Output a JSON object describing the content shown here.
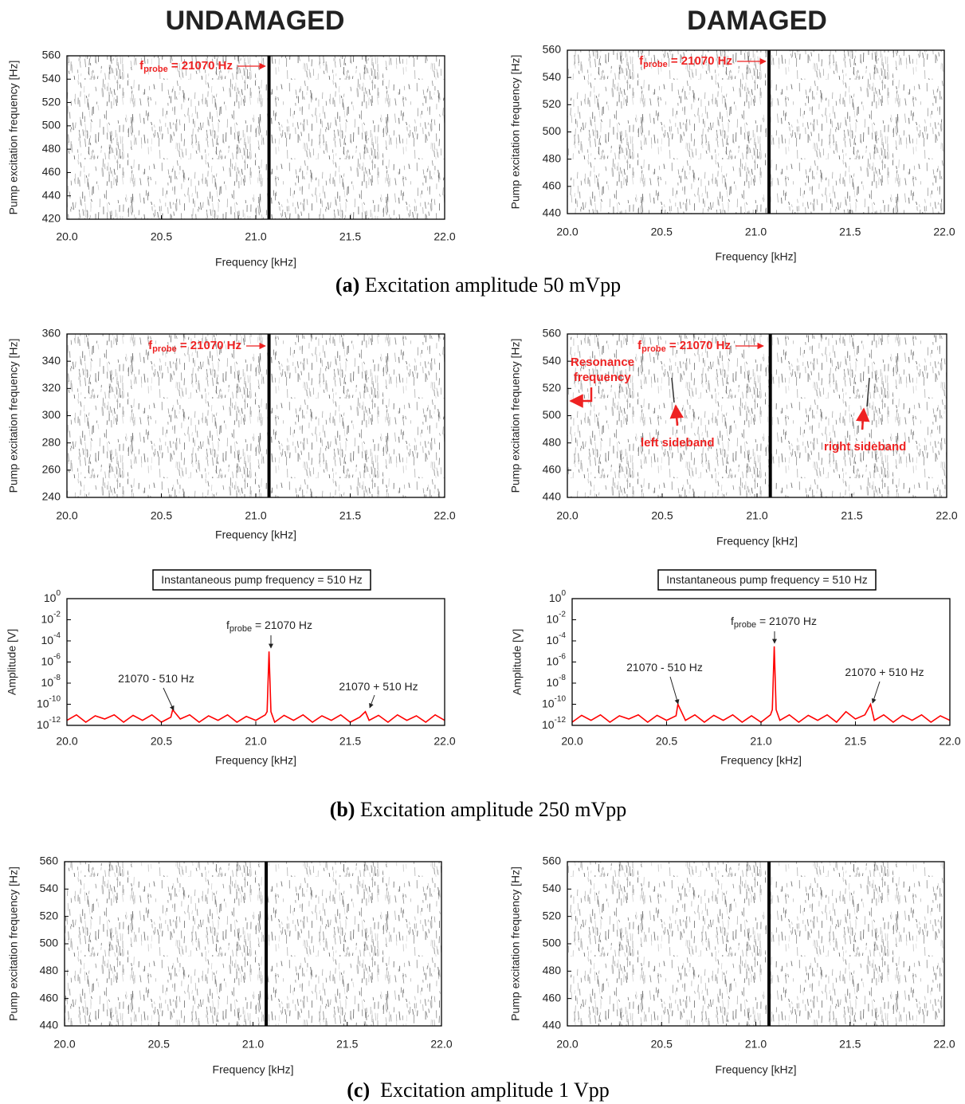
{
  "headers": {
    "undamaged": "UNDAMAGED",
    "damaged": "DAMAGED"
  },
  "captions": [
    {
      "label": "(a)",
      "text": " Excitation amplitude 50 mVpp"
    },
    {
      "label": "(b)",
      "text": " Excitation amplitude 250 mVpp"
    },
    {
      "label": "(c)",
      "text": "  Excitation amplitude 1 Vpp"
    }
  ],
  "chart_data": [
    {
      "type": "spectrogram",
      "xlabel": "Frequency [kHz]",
      "ylabel": "Pump excitation frequency [Hz]",
      "xlim": [
        20,
        22
      ],
      "ylim": [
        420,
        560
      ],
      "xticks": [
        {
          "value": 20,
          "label": "20.0"
        },
        {
          "value": 20.5,
          "label": "20.5"
        },
        {
          "value": 21,
          "label": "21.0"
        },
        {
          "value": 21.5,
          "label": "21.5"
        },
        {
          "value": 22,
          "label": "22.0"
        }
      ],
      "yticks": [
        420,
        440,
        460,
        480,
        500,
        520,
        540,
        560
      ],
      "probe_frequency": 21.07,
      "annotations": [
        {
          "symbol": "f",
          "subscript": "probe",
          "text": " = 21070 Hz"
        }
      ]
    },
    {
      "type": "spectrogram",
      "xlabel": "Frequency [kHz]",
      "ylabel": "Pump excitation frequency [Hz]",
      "xlim": [
        20,
        22
      ],
      "ylim": [
        440,
        560
      ],
      "xticks": [
        {
          "value": 20,
          "label": "20.0"
        },
        {
          "value": 20.5,
          "label": "20.5"
        },
        {
          "value": 21,
          "label": "21.0"
        },
        {
          "value": 21.5,
          "label": "21.5"
        },
        {
          "value": 22,
          "label": "22.0"
        }
      ],
      "yticks": [
        440,
        460,
        480,
        500,
        520,
        540,
        560
      ],
      "probe_frequency": 21.07,
      "annotations": [
        {
          "symbol": "f",
          "subscript": "probe",
          "text": " = 21070 Hz"
        }
      ]
    },
    {
      "type": "spectrogram",
      "xlabel": "Frequency [kHz]",
      "ylabel": "Pump excitation frequency [Hz]",
      "xlim": [
        20,
        22
      ],
      "ylim": [
        240,
        360
      ],
      "xticks": [
        {
          "value": 20,
          "label": "20.0"
        },
        {
          "value": 20.5,
          "label": "20.5"
        },
        {
          "value": 21,
          "label": "21.0"
        },
        {
          "value": 21.5,
          "label": "21.5"
        },
        {
          "value": 22,
          "label": "22.0"
        }
      ],
      "yticks": [
        240,
        260,
        280,
        300,
        320,
        340,
        360
      ],
      "probe_frequency": 21.07,
      "annotations": [
        {
          "symbol": "f",
          "subscript": "probe",
          "text": " = 21070 Hz"
        }
      ]
    },
    {
      "type": "spectrogram",
      "xlabel": "Frequency [kHz]",
      "ylabel": "Pump excitation frequency [Hz]",
      "xlim": [
        20,
        22
      ],
      "ylim": [
        440,
        560
      ],
      "xticks": [
        {
          "value": 20,
          "label": "20.0"
        },
        {
          "value": 20.5,
          "label": "20.5"
        },
        {
          "value": 21,
          "label": "21.0"
        },
        {
          "value": 21.5,
          "label": "21.5"
        },
        {
          "value": 22,
          "label": "22.0"
        }
      ],
      "yticks": [
        440,
        460,
        480,
        500,
        520,
        540,
        560
      ],
      "probe_frequency": 21.07,
      "annotations": [
        {
          "symbol": "f",
          "subscript": "probe",
          "text": " = 21070 Hz"
        },
        {
          "text": "Resonance"
        },
        {
          "text": "frequency"
        },
        {
          "text": "left sideband"
        },
        {
          "text": "right sideband"
        }
      ]
    },
    {
      "type": "line",
      "ylog": true,
      "box_label": "Instantaneous pump frequency = 510 Hz",
      "xlabel": "Frequency [kHz]",
      "ylabel": "Amplitude [V]",
      "xlim": [
        20,
        22
      ],
      "ylim": [
        1e-12,
        1
      ],
      "xticks": [
        {
          "value": 20,
          "label": "20.0"
        },
        {
          "value": 20.5,
          "label": "20.5"
        },
        {
          "value": 21,
          "label": "21.0"
        },
        {
          "value": 21.5,
          "label": "21.5"
        },
        {
          "value": 22,
          "label": "22.0"
        }
      ],
      "yticks": [
        {
          "value": 1,
          "label": "10",
          "exponent": "0"
        },
        {
          "value": 0.01,
          "label": "10",
          "exponent": "-2"
        },
        {
          "value": 0.0001,
          "label": "10",
          "exponent": "-4"
        },
        {
          "value": 1e-06,
          "label": "10",
          "exponent": "-6"
        },
        {
          "value": 1e-08,
          "label": "10",
          "exponent": "-8"
        },
        {
          "value": 1e-10,
          "label": "10",
          "exponent": "-10"
        },
        {
          "value": 1e-12,
          "label": "10",
          "exponent": "-12"
        }
      ],
      "series": [
        {
          "color": "#ff0000",
          "x": [
            20.0,
            20.05,
            20.1,
            20.15,
            20.2,
            20.25,
            20.3,
            20.35,
            20.4,
            20.45,
            20.5,
            20.55,
            20.56,
            20.6,
            20.65,
            20.7,
            20.75,
            20.8,
            20.85,
            20.9,
            20.95,
            21.0,
            21.05,
            21.06,
            21.07,
            21.08,
            21.1,
            21.15,
            21.2,
            21.25,
            21.3,
            21.35,
            21.4,
            21.45,
            21.5,
            21.55,
            21.58,
            21.6,
            21.65,
            21.7,
            21.75,
            21.8,
            21.85,
            21.9,
            21.95,
            22.0
          ],
          "values": [
            3e-12,
            1e-11,
            2e-12,
            8e-12,
            4e-12,
            1e-11,
            2e-12,
            9e-12,
            3e-12,
            1e-11,
            2e-12,
            6e-12,
            3e-11,
            4e-12,
            1e-11,
            2e-12,
            8e-12,
            3e-12,
            1e-11,
            2e-12,
            7e-12,
            3e-12,
            1e-11,
            2e-11,
            1e-05,
            2e-11,
            2e-12,
            9e-12,
            3e-12,
            1e-11,
            2e-12,
            8e-12,
            3e-12,
            1e-11,
            2e-12,
            6e-12,
            2e-11,
            3e-12,
            9e-12,
            2e-12,
            1e-11,
            3e-12,
            8e-12,
            2e-12,
            1e-11,
            3e-12
          ]
        }
      ],
      "annotations": [
        {
          "symbol": "f",
          "subscript": "probe",
          "text": " = 21070 Hz"
        },
        {
          "text": "21070 - 510 Hz"
        },
        {
          "text": "21070 + 510 Hz"
        }
      ]
    },
    {
      "type": "line",
      "ylog": true,
      "box_label": "Instantaneous pump frequency = 510 Hz",
      "xlabel": "Frequency [kHz]",
      "ylabel": "Amplitude [V]",
      "xlim": [
        20,
        22
      ],
      "ylim": [
        1e-12,
        1
      ],
      "xticks": [
        {
          "value": 20,
          "label": "20.0"
        },
        {
          "value": 20.5,
          "label": "20.5"
        },
        {
          "value": 21,
          "label": "21.0"
        },
        {
          "value": 21.5,
          "label": "21.5"
        },
        {
          "value": 22,
          "label": "22.0"
        }
      ],
      "yticks": [
        {
          "value": 1,
          "label": "10",
          "exponent": "0"
        },
        {
          "value": 0.01,
          "label": "10",
          "exponent": "-2"
        },
        {
          "value": 0.0001,
          "label": "10",
          "exponent": "-4"
        },
        {
          "value": 1e-06,
          "label": "10",
          "exponent": "-6"
        },
        {
          "value": 1e-08,
          "label": "10",
          "exponent": "-8"
        },
        {
          "value": 1e-10,
          "label": "10",
          "exponent": "-10"
        },
        {
          "value": 1e-12,
          "label": "10",
          "exponent": "-12"
        }
      ],
      "series": [
        {
          "color": "#ff0000",
          "x": [
            20.0,
            20.05,
            20.1,
            20.15,
            20.2,
            20.25,
            20.3,
            20.35,
            20.4,
            20.45,
            20.5,
            20.55,
            20.56,
            20.6,
            20.65,
            20.7,
            20.75,
            20.8,
            20.85,
            20.9,
            20.95,
            21.0,
            21.05,
            21.06,
            21.07,
            21.08,
            21.1,
            21.15,
            21.2,
            21.25,
            21.3,
            21.35,
            21.4,
            21.45,
            21.5,
            21.55,
            21.58,
            21.6,
            21.65,
            21.7,
            21.75,
            21.8,
            21.85,
            21.9,
            21.95,
            22.0
          ],
          "values": [
            2e-12,
            9e-12,
            3e-12,
            1e-11,
            2e-12,
            8e-12,
            4e-12,
            1e-11,
            2e-12,
            9e-12,
            3e-12,
            8e-12,
            1e-10,
            3e-12,
            1e-11,
            2e-12,
            9e-12,
            3e-12,
            1e-11,
            2e-12,
            8e-12,
            2e-12,
            1e-11,
            3e-11,
            3e-05,
            3e-11,
            3e-12,
            1e-11,
            2e-12,
            9e-12,
            3e-12,
            1e-11,
            2e-12,
            2e-11,
            4e-12,
            1e-11,
            1e-10,
            3e-12,
            1e-11,
            2e-12,
            9e-12,
            3e-12,
            1e-11,
            2e-12,
            8e-12,
            3e-12
          ]
        }
      ],
      "annotations": [
        {
          "symbol": "f",
          "subscript": "probe",
          "text": " = 21070 Hz"
        },
        {
          "text": "21070 - 510 Hz"
        },
        {
          "text": "21070 + 510 Hz"
        }
      ]
    },
    {
      "type": "spectrogram",
      "xlabel": "Frequency [kHz]",
      "ylabel": "Pump excitation frequency [Hz]",
      "xlim": [
        20,
        22
      ],
      "ylim": [
        440,
        560
      ],
      "xticks": [
        {
          "value": 20,
          "label": "20.0"
        },
        {
          "value": 20.5,
          "label": "20.5"
        },
        {
          "value": 21,
          "label": "21.0"
        },
        {
          "value": 21.5,
          "label": "21.5"
        },
        {
          "value": 22,
          "label": "22.0"
        }
      ],
      "yticks": [
        440,
        460,
        480,
        500,
        520,
        540,
        560
      ],
      "probe_frequency": 21.07,
      "annotations": []
    },
    {
      "type": "spectrogram",
      "xlabel": "Frequency [kHz]",
      "ylabel": "Pump excitation frequency [Hz]",
      "xlim": [
        20,
        22
      ],
      "ylim": [
        440,
        560
      ],
      "xticks": [
        {
          "value": 20,
          "label": "20.0"
        },
        {
          "value": 20.5,
          "label": "20.5"
        },
        {
          "value": 21,
          "label": "21.0"
        },
        {
          "value": 21.5,
          "label": "21.5"
        },
        {
          "value": 22,
          "label": "22.0"
        }
      ],
      "yticks": [
        440,
        460,
        480,
        500,
        520,
        540,
        560
      ],
      "probe_frequency": 21.07,
      "annotations": []
    }
  ]
}
